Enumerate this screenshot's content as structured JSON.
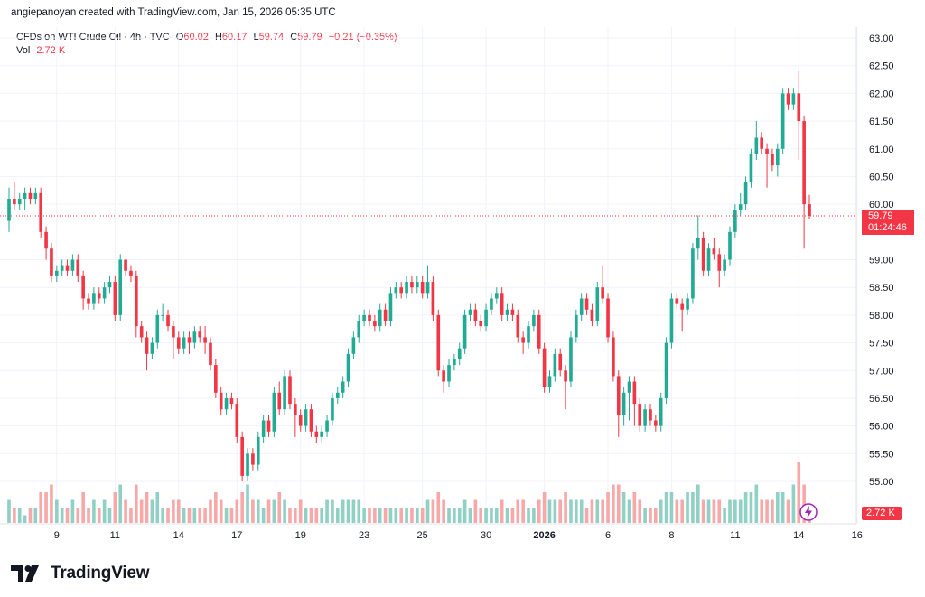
{
  "header": {
    "credit": "angiepanoyan created with TradingView.com, Jan 15, 2026 05:35 UTC"
  },
  "legend": {
    "symbol": "CFDs on WTI Crude Oil · 4h · TVC",
    "open_label": "O",
    "open": "60.02",
    "high_label": "H",
    "high": "60.17",
    "low_label": "L",
    "low": "59.74",
    "close_label": "C",
    "close": "59.79",
    "change": "−0.21 (−0.35%)",
    "vol_label": "Vol",
    "vol": "2.72 K"
  },
  "price_tag": {
    "price": "59.79",
    "countdown": "01:24:46"
  },
  "vol_tag": "2.72 K",
  "logo": {
    "text": "TradingView"
  },
  "colors": {
    "up": "#22ab94",
    "down": "#f23645",
    "vol_up": "#91d1c5",
    "vol_down": "#f7a9a9",
    "grid": "#f0f3fa"
  },
  "chart_data": {
    "type": "candlestick",
    "symbol": "CFDs on WTI Crude Oil",
    "interval": "4h",
    "ylim": [
      54.5,
      63.25
    ],
    "y_ticks": [
      "63.00",
      "62.50",
      "62.00",
      "61.50",
      "61.00",
      "60.50",
      "60.00",
      "59.00",
      "58.50",
      "58.00",
      "57.50",
      "57.00",
      "56.50",
      "56.00",
      "55.50",
      "55.00"
    ],
    "x_ticks": [
      "9",
      "11",
      "14",
      "17",
      "19",
      "23",
      "25",
      "30",
      "2026",
      "6",
      "8",
      "11",
      "14",
      "16"
    ],
    "current_price": 59.79,
    "candles": [
      [
        59.7,
        60.1,
        60.3,
        59.5,
        3
      ],
      [
        60.1,
        60.0,
        60.4,
        59.9,
        2
      ],
      [
        60.0,
        60.1,
        60.2,
        59.9,
        2
      ],
      [
        60.1,
        60.2,
        60.3,
        59.9,
        1
      ],
      [
        60.2,
        60.1,
        60.3,
        60.0,
        2
      ],
      [
        60.1,
        60.2,
        60.3,
        60.0,
        2
      ],
      [
        60.2,
        59.5,
        60.3,
        59.4,
        4
      ],
      [
        59.5,
        59.2,
        59.6,
        59.0,
        4
      ],
      [
        59.2,
        58.7,
        59.3,
        58.6,
        5
      ],
      [
        58.7,
        58.8,
        58.9,
        58.6,
        3
      ],
      [
        58.8,
        58.9,
        59.0,
        58.7,
        2
      ],
      [
        58.9,
        58.8,
        59.0,
        58.7,
        2
      ],
      [
        58.8,
        59.0,
        59.1,
        58.7,
        3
      ],
      [
        59.0,
        58.7,
        59.1,
        58.6,
        2
      ],
      [
        58.7,
        58.3,
        58.8,
        58.1,
        4
      ],
      [
        58.3,
        58.2,
        58.4,
        58.1,
        2
      ],
      [
        58.2,
        58.4,
        58.5,
        58.1,
        3
      ],
      [
        58.4,
        58.3,
        58.5,
        58.2,
        2
      ],
      [
        58.3,
        58.5,
        58.6,
        58.2,
        3
      ],
      [
        58.5,
        58.6,
        58.7,
        58.4,
        2
      ],
      [
        58.6,
        58.0,
        58.7,
        57.9,
        4
      ],
      [
        58.0,
        59.0,
        59.1,
        57.9,
        5
      ],
      [
        59.0,
        58.8,
        59.0,
        58.7,
        3
      ],
      [
        58.8,
        58.7,
        58.9,
        58.6,
        2
      ],
      [
        58.7,
        57.8,
        58.8,
        57.6,
        5
      ],
      [
        57.8,
        57.6,
        57.9,
        57.5,
        3
      ],
      [
        57.6,
        57.3,
        57.7,
        57.0,
        4
      ],
      [
        57.3,
        57.5,
        57.6,
        57.2,
        3
      ],
      [
        57.5,
        58.0,
        58.1,
        57.4,
        4
      ],
      [
        58.0,
        58.0,
        58.2,
        57.9,
        2
      ],
      [
        58.0,
        57.8,
        58.1,
        57.7,
        2
      ],
      [
        57.8,
        57.6,
        57.9,
        57.2,
        3
      ],
      [
        57.6,
        57.4,
        57.7,
        57.3,
        3
      ],
      [
        57.4,
        57.6,
        57.7,
        57.3,
        2
      ],
      [
        57.6,
        57.5,
        57.7,
        57.3,
        2
      ],
      [
        57.5,
        57.7,
        57.8,
        57.4,
        2
      ],
      [
        57.7,
        57.6,
        57.8,
        57.5,
        2
      ],
      [
        57.6,
        57.5,
        57.8,
        57.3,
        2
      ],
      [
        57.5,
        57.1,
        57.6,
        57.0,
        3
      ],
      [
        57.1,
        56.6,
        57.2,
        56.5,
        4
      ],
      [
        56.6,
        56.3,
        56.7,
        56.2,
        3
      ],
      [
        56.3,
        56.5,
        56.6,
        56.2,
        2
      ],
      [
        56.5,
        56.4,
        56.6,
        56.3,
        2
      ],
      [
        56.4,
        55.8,
        56.5,
        55.7,
        3
      ],
      [
        55.8,
        55.1,
        55.9,
        55.0,
        4
      ],
      [
        55.1,
        55.5,
        55.6,
        55.0,
        5
      ],
      [
        55.5,
        55.3,
        55.6,
        55.2,
        3
      ],
      [
        55.3,
        55.8,
        55.9,
        55.2,
        3
      ],
      [
        55.8,
        56.1,
        56.2,
        55.7,
        2
      ],
      [
        56.1,
        55.9,
        56.2,
        55.8,
        3
      ],
      [
        55.9,
        56.6,
        56.7,
        55.8,
        3
      ],
      [
        56.6,
        56.3,
        56.8,
        56.2,
        4
      ],
      [
        56.3,
        56.9,
        57.0,
        56.2,
        3
      ],
      [
        56.9,
        56.4,
        57.0,
        56.3,
        2
      ],
      [
        56.4,
        56.2,
        56.5,
        55.8,
        2
      ],
      [
        56.2,
        56.0,
        56.3,
        55.9,
        3
      ],
      [
        56.0,
        56.3,
        56.4,
        55.9,
        2
      ],
      [
        56.3,
        55.9,
        56.4,
        55.8,
        2
      ],
      [
        55.9,
        55.8,
        56.0,
        55.7,
        2
      ],
      [
        55.8,
        55.9,
        56.0,
        55.7,
        2
      ],
      [
        55.9,
        56.1,
        56.2,
        55.8,
        3
      ],
      [
        56.1,
        56.5,
        56.6,
        56.0,
        3
      ],
      [
        56.5,
        56.6,
        56.7,
        56.4,
        2
      ],
      [
        56.6,
        56.8,
        56.9,
        56.5,
        3
      ],
      [
        56.8,
        57.3,
        57.4,
        56.7,
        3
      ],
      [
        57.3,
        57.6,
        57.7,
        57.2,
        3
      ],
      [
        57.6,
        57.9,
        58.0,
        57.5,
        3
      ],
      [
        57.9,
        58.0,
        58.1,
        57.8,
        2
      ],
      [
        58.0,
        57.9,
        58.1,
        57.8,
        2
      ],
      [
        57.9,
        57.8,
        58.0,
        57.7,
        2
      ],
      [
        57.8,
        58.1,
        58.2,
        57.7,
        2
      ],
      [
        58.1,
        57.9,
        58.2,
        57.8,
        2
      ],
      [
        57.9,
        58.4,
        58.5,
        57.8,
        2
      ],
      [
        58.4,
        58.5,
        58.6,
        58.3,
        2
      ],
      [
        58.5,
        58.4,
        58.6,
        58.3,
        2
      ],
      [
        58.4,
        58.6,
        58.7,
        58.3,
        2
      ],
      [
        58.6,
        58.5,
        58.7,
        58.4,
        2
      ],
      [
        58.5,
        58.6,
        58.7,
        58.4,
        2
      ],
      [
        58.6,
        58.4,
        58.7,
        58.3,
        2
      ],
      [
        58.4,
        58.6,
        58.9,
        58.3,
        3
      ],
      [
        58.6,
        58.0,
        58.7,
        57.9,
        3
      ],
      [
        58.0,
        57.0,
        58.1,
        56.9,
        4
      ],
      [
        57.0,
        56.8,
        57.1,
        56.6,
        3
      ],
      [
        56.8,
        57.1,
        57.2,
        56.7,
        2
      ],
      [
        57.1,
        57.2,
        57.3,
        57.0,
        2
      ],
      [
        57.2,
        57.4,
        57.5,
        57.1,
        2
      ],
      [
        57.4,
        58.0,
        58.1,
        57.3,
        3
      ],
      [
        58.0,
        58.1,
        58.2,
        57.9,
        2
      ],
      [
        58.1,
        57.9,
        58.2,
        57.8,
        3
      ],
      [
        57.9,
        57.8,
        58.0,
        57.7,
        2
      ],
      [
        57.8,
        58.1,
        58.2,
        57.7,
        2
      ],
      [
        58.1,
        58.3,
        58.4,
        58.0,
        2
      ],
      [
        58.3,
        58.4,
        58.5,
        58.2,
        2
      ],
      [
        58.4,
        58.0,
        58.5,
        57.9,
        3
      ],
      [
        58.0,
        58.1,
        58.2,
        57.9,
        2
      ],
      [
        58.1,
        58.0,
        58.2,
        57.9,
        2
      ],
      [
        58.0,
        57.6,
        58.1,
        57.5,
        3
      ],
      [
        57.6,
        57.5,
        57.7,
        57.3,
        3
      ],
      [
        57.5,
        57.8,
        57.9,
        57.4,
        2
      ],
      [
        57.8,
        58.0,
        58.1,
        57.7,
        2
      ],
      [
        58.0,
        57.4,
        58.1,
        57.3,
        3
      ],
      [
        57.4,
        56.7,
        57.5,
        56.6,
        4
      ],
      [
        56.7,
        56.9,
        57.0,
        56.6,
        3
      ],
      [
        56.9,
        57.3,
        57.4,
        56.8,
        3
      ],
      [
        57.3,
        57.0,
        57.4,
        56.9,
        3
      ],
      [
        57.0,
        56.8,
        57.1,
        56.3,
        4
      ],
      [
        56.8,
        57.6,
        57.7,
        56.7,
        3
      ],
      [
        57.6,
        58.0,
        58.1,
        57.5,
        3
      ],
      [
        58.0,
        58.3,
        58.4,
        57.9,
        3
      ],
      [
        58.3,
        58.1,
        58.4,
        58.0,
        2
      ],
      [
        58.1,
        57.9,
        58.2,
        57.8,
        3
      ],
      [
        57.9,
        58.5,
        58.6,
        57.8,
        3
      ],
      [
        58.5,
        58.3,
        58.9,
        58.2,
        3
      ],
      [
        58.3,
        57.6,
        58.4,
        57.5,
        4
      ],
      [
        57.6,
        56.9,
        57.7,
        56.8,
        5
      ],
      [
        56.9,
        56.2,
        57.0,
        55.8,
        5
      ],
      [
        56.2,
        56.6,
        56.7,
        56.0,
        4
      ],
      [
        56.6,
        56.8,
        56.9,
        56.1,
        3
      ],
      [
        56.8,
        56.4,
        56.9,
        56.0,
        4
      ],
      [
        56.4,
        56.0,
        56.5,
        55.9,
        3
      ],
      [
        56.0,
        56.3,
        56.4,
        55.9,
        2
      ],
      [
        56.3,
        56.1,
        56.4,
        56.0,
        2
      ],
      [
        56.1,
        56.0,
        56.2,
        55.9,
        2
      ],
      [
        56.0,
        56.5,
        56.6,
        55.9,
        3
      ],
      [
        56.5,
        57.5,
        57.6,
        56.4,
        4
      ],
      [
        57.5,
        58.3,
        58.4,
        57.4,
        4
      ],
      [
        58.3,
        58.2,
        58.4,
        58.1,
        3
      ],
      [
        58.2,
        58.1,
        58.3,
        57.7,
        3
      ],
      [
        58.1,
        58.3,
        58.4,
        58.0,
        4
      ],
      [
        58.3,
        59.2,
        59.3,
        58.2,
        4
      ],
      [
        59.2,
        59.4,
        59.8,
        59.0,
        5
      ],
      [
        59.4,
        58.8,
        59.5,
        58.7,
        3
      ],
      [
        58.8,
        59.2,
        59.3,
        58.7,
        3
      ],
      [
        59.2,
        59.1,
        59.4,
        59.0,
        3
      ],
      [
        59.1,
        58.8,
        59.2,
        58.5,
        3
      ],
      [
        58.8,
        59.0,
        59.1,
        58.7,
        2
      ],
      [
        59.0,
        59.5,
        59.6,
        58.9,
        3
      ],
      [
        59.5,
        59.9,
        60.0,
        59.4,
        3
      ],
      [
        59.9,
        60.0,
        60.2,
        59.8,
        3
      ],
      [
        60.0,
        60.4,
        60.5,
        59.9,
        4
      ],
      [
        60.4,
        60.9,
        61.0,
        60.3,
        4
      ],
      [
        60.9,
        61.2,
        61.5,
        60.8,
        5
      ],
      [
        61.2,
        61.0,
        61.3,
        60.9,
        3
      ],
      [
        61.0,
        60.9,
        61.1,
        60.3,
        3
      ],
      [
        60.9,
        60.7,
        61.0,
        60.6,
        3
      ],
      [
        60.7,
        61.0,
        61.1,
        60.5,
        4
      ],
      [
        61.0,
        62.0,
        62.1,
        60.9,
        4
      ],
      [
        62.0,
        61.8,
        62.1,
        61.7,
        3
      ],
      [
        61.8,
        62.0,
        62.1,
        61.7,
        5
      ],
      [
        62.0,
        61.5,
        62.4,
        60.8,
        8
      ],
      [
        61.5,
        60.0,
        61.6,
        59.2,
        5
      ],
      [
        60.0,
        59.79,
        60.17,
        59.74,
        2
      ]
    ]
  }
}
